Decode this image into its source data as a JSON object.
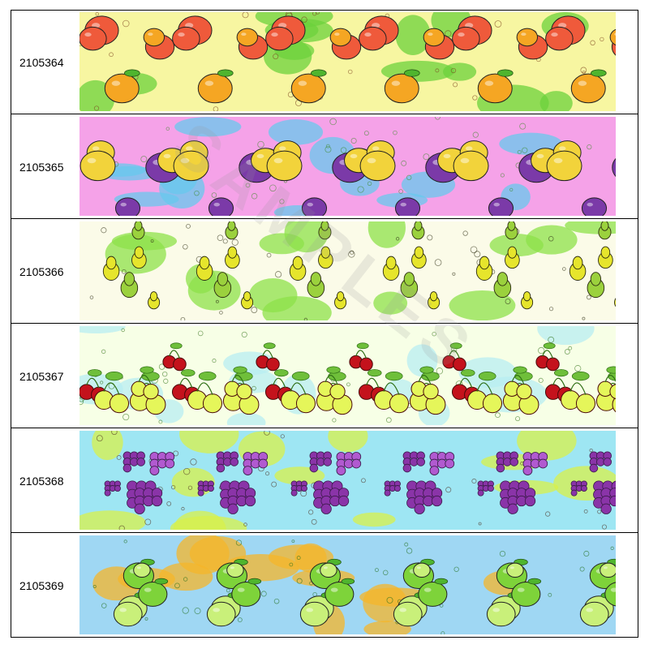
{
  "items": [
    {
      "code": "2105364",
      "pattern": "peaches-icon",
      "colors": {
        "bg": "#f7f6a1",
        "accent": "#6cd23c",
        "main": "#ef5a3b",
        "second": "#f5a623",
        "dark": "#7a3f1d"
      }
    },
    {
      "code": "2105365",
      "pattern": "mixed-fruit-icon",
      "colors": {
        "bg": "#f5a2e8",
        "accent": "#67c8ee",
        "main": "#7b3aa8",
        "second": "#f2d33b",
        "dark": "#3d8a29"
      }
    },
    {
      "code": "2105366",
      "pattern": "pears-icon",
      "colors": {
        "bg": "#fbfbe8",
        "accent": "#8de24a",
        "main": "#e6e52c",
        "second": "#9bd13d",
        "dark": "#2b2b10"
      }
    },
    {
      "code": "2105367",
      "pattern": "cherries-icon",
      "colors": {
        "bg": "#f7ffe6",
        "accent": "#b8eef2",
        "main": "#c4121c",
        "second": "#e5f65a",
        "dark": "#2e6e14"
      }
    },
    {
      "code": "2105368",
      "pattern": "grapes-icon",
      "colors": {
        "bg": "#9ee6f3",
        "accent": "#d8f04a",
        "main": "#8a34a8",
        "second": "#b15ad0",
        "dark": "#4a2a1a"
      }
    },
    {
      "code": "2105369",
      "pattern": "limes-icon",
      "colors": {
        "bg": "#9fd7f3",
        "accent": "#f5b62a",
        "main": "#7ed33a",
        "second": "#c9f07a",
        "dark": "#1e6b16"
      }
    }
  ],
  "watermark": "SAMPLES"
}
